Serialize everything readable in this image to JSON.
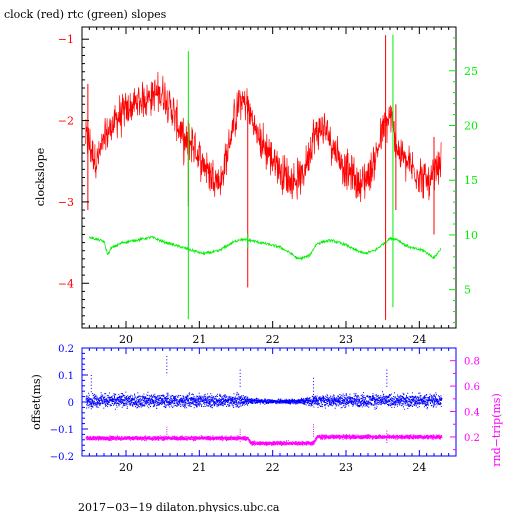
{
  "chart_data": [
    {
      "type": "line",
      "title": "clock (red) rtc (green) slopes",
      "ylabel": "clockslope",
      "xlim": [
        19.4,
        24.5
      ],
      "ylim": [
        -4.55,
        -0.85
      ],
      "y2lim": [
        1.5,
        29
      ],
      "x_ticks": [
        20,
        21,
        22,
        23,
        24
      ],
      "y_ticks": [
        -1,
        -2,
        -3,
        -4
      ],
      "y2_ticks": [
        5,
        10,
        15,
        20,
        25
      ],
      "grid": false,
      "colors": {
        "clock": "#ff0000",
        "rtc": "#00ee00",
        "axes": "#000000"
      },
      "series": [
        {
          "key": "clock",
          "x": [
            19.45,
            19.6,
            19.75,
            19.9,
            20.05,
            20.2,
            20.35,
            20.5,
            20.65,
            20.8,
            20.9,
            21.0,
            21.15,
            21.3,
            21.45,
            21.55,
            21.65,
            21.8,
            21.95,
            22.1,
            22.25,
            22.4,
            22.55,
            22.65,
            22.75,
            22.9,
            23.05,
            23.2,
            23.35,
            23.5,
            23.6,
            23.7,
            23.85,
            24.0,
            24.15,
            24.3
          ],
          "y": [
            -2.2,
            -2.5,
            -2.15,
            -1.95,
            -1.85,
            -1.75,
            -1.7,
            -1.65,
            -1.9,
            -2.3,
            -2.25,
            -2.45,
            -2.65,
            -2.75,
            -2.1,
            -1.75,
            -1.8,
            -2.2,
            -2.4,
            -2.6,
            -2.75,
            -2.7,
            -2.2,
            -2.1,
            -2.15,
            -2.45,
            -2.65,
            -2.8,
            -2.6,
            -2.15,
            -1.95,
            -2.35,
            -2.55,
            -2.65,
            -2.8,
            -2.5
          ],
          "spread": 0.22,
          "spikes": [
            {
              "x": 19.48,
              "lo": -3.1,
              "hi": -1.55
            },
            {
              "x": 20.85,
              "lo": -3.05,
              "hi": -2.0
            },
            {
              "x": 21.66,
              "lo": -4.05,
              "hi": -1.7
            },
            {
              "x": 23.54,
              "lo": -4.45,
              "hi": -0.95
            },
            {
              "x": 23.68,
              "lo": -3.1,
              "hi": -1.8
            },
            {
              "x": 24.2,
              "lo": -3.4,
              "hi": -2.2
            }
          ]
        },
        {
          "key": "rtc",
          "x": [
            19.5,
            19.55,
            19.7,
            19.75,
            19.8,
            19.95,
            20.2,
            20.35,
            20.5,
            20.65,
            20.8,
            20.9,
            21.05,
            21.25,
            21.45,
            21.55,
            21.7,
            21.9,
            22.1,
            22.25,
            22.35,
            22.5,
            22.6,
            22.7,
            22.8,
            23.0,
            23.1,
            23.25,
            23.4,
            23.6,
            23.7,
            23.8,
            23.9,
            24.05,
            24.2,
            24.3
          ],
          "y": [
            9.8,
            9.7,
            9.4,
            8.2,
            8.8,
            9.3,
            9.6,
            9.8,
            9.4,
            9.1,
            8.8,
            8.6,
            8.3,
            8.5,
            9.3,
            9.6,
            9.5,
            9.2,
            8.9,
            8.3,
            7.8,
            8.1,
            9.2,
            9.4,
            9.5,
            9.1,
            8.7,
            8.3,
            8.6,
            9.7,
            9.6,
            9.1,
            8.8,
            8.6,
            7.9,
            8.8
          ],
          "spread": 0.12,
          "spikes": [
            {
              "x": 20.85,
              "lo": 2.3,
              "hi": 26.8
            },
            {
              "x": 21.66,
              "lo": 8.8,
              "hi": 10.1
            },
            {
              "x": 23.64,
              "lo": 3.4,
              "hi": 28.3
            }
          ]
        }
      ]
    },
    {
      "type": "scatter",
      "ylabel": "offset(ms)",
      "y2label": "rnd−trip(ms)",
      "xlabel": "",
      "xlim": [
        19.4,
        24.5
      ],
      "ylim": [
        -0.2,
        0.2
      ],
      "y2lim": [
        0.05,
        0.9
      ],
      "x_ticks": [
        20,
        21,
        22,
        23,
        24
      ],
      "y_ticks": [
        0.2,
        0.1,
        0,
        -0.1,
        -0.2
      ],
      "y_tick_labels": [
        "0.2",
        "0.1",
        "0",
        "−0.1",
        "−0.2"
      ],
      "y2_ticks": [
        0.2,
        0.4,
        0.6,
        0.8
      ],
      "grid": false,
      "colors": {
        "offset": "#0000ff",
        "roundtrip": "#ff00ff",
        "axes": "#0000ff"
      },
      "series": [
        {
          "key": "offset",
          "x": [
            19.45,
            20.0,
            20.5,
            21.0,
            21.5,
            21.7,
            22.0,
            22.3,
            22.6,
            23.0,
            23.5,
            24.0,
            24.3
          ],
          "y": [
            0.005,
            0.005,
            0.005,
            0.005,
            0.005,
            0.003,
            0.002,
            0.002,
            0.004,
            0.005,
            0.005,
            0.005,
            0.005
          ],
          "spread": [
            0.035,
            0.035,
            0.035,
            0.035,
            0.035,
            0.015,
            0.01,
            0.012,
            0.03,
            0.035,
            0.035,
            0.035,
            0.035
          ],
          "outliers": [
            [
              19.52,
              0.1
            ],
            [
              20.55,
              0.17
            ],
            [
              21.55,
              0.12
            ],
            [
              22.55,
              0.09
            ],
            [
              23.55,
              0.12
            ]
          ]
        },
        {
          "key": "roundtrip",
          "x": [
            19.45,
            20.0,
            20.5,
            21.0,
            21.5,
            21.65,
            21.7,
            22.0,
            22.3,
            22.55,
            22.6,
            23.0,
            23.5,
            24.0,
            24.3
          ],
          "y": [
            0.19,
            0.19,
            0.19,
            0.19,
            0.19,
            0.19,
            0.15,
            0.15,
            0.15,
            0.15,
            0.2,
            0.2,
            0.2,
            0.2,
            0.2
          ],
          "spread": 0.022,
          "outliers": [
            [
              20.55,
              0.28
            ],
            [
              21.55,
              0.26
            ],
            [
              22.55,
              0.3
            ],
            [
              23.55,
              0.25
            ]
          ]
        }
      ]
    }
  ],
  "footer": "2017−03−19  dilaton.physics.ubc.ca"
}
